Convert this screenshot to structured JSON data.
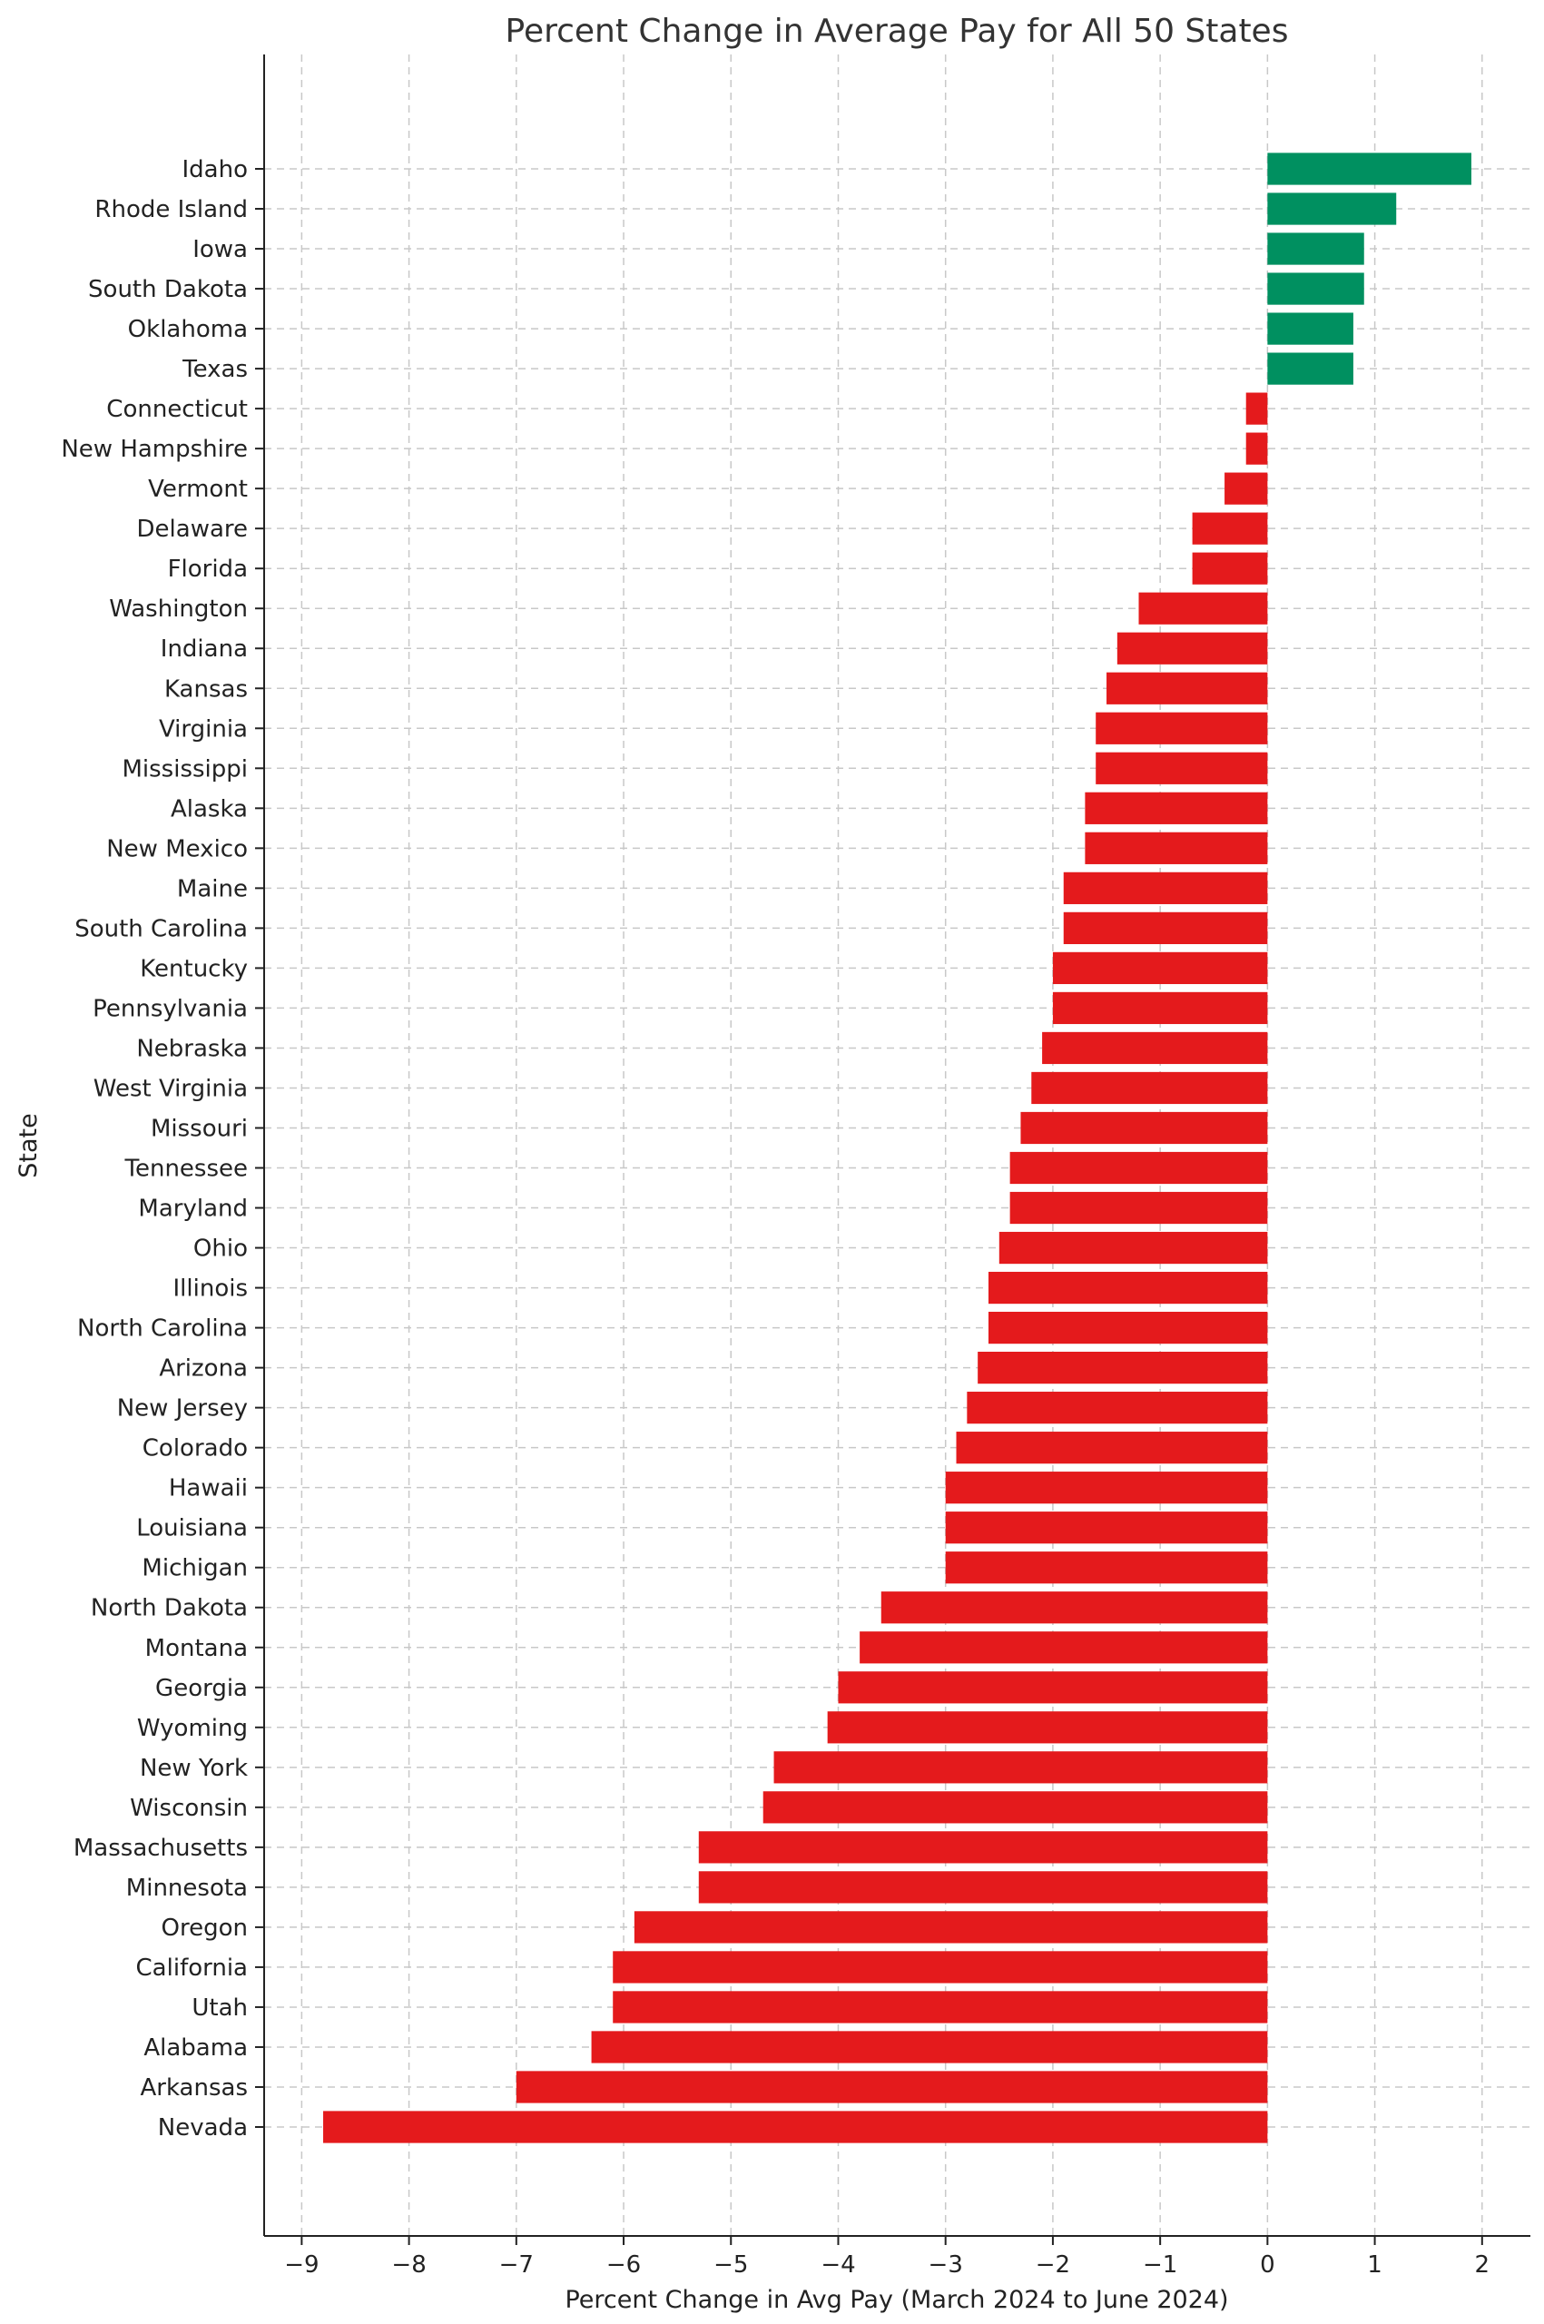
{
  "chart_data": {
    "type": "bar",
    "orientation": "horizontal",
    "title": "Percent Change in Average Pay for All 50 States",
    "xlabel": "Percent Change in Avg Pay (March 2024 to June 2024)",
    "ylabel": "State",
    "xlim": [
      -9.35,
      2.45
    ],
    "xticks": [
      -9,
      -8,
      -7,
      -6,
      -5,
      -4,
      -3,
      -2,
      -1,
      0,
      1,
      2
    ],
    "xtick_labels": [
      "−9",
      "−8",
      "−7",
      "−6",
      "−5",
      "−4",
      "−3",
      "−2",
      "−1",
      "0",
      "1",
      "2"
    ],
    "grid": true,
    "colors": {
      "positive": "#009060",
      "negative": "#e41a1c"
    },
    "categories": [
      "Idaho",
      "Rhode Island",
      "Iowa",
      "South Dakota",
      "Oklahoma",
      "Texas",
      "Connecticut",
      "New Hampshire",
      "Vermont",
      "Delaware",
      "Florida",
      "Washington",
      "Indiana",
      "Kansas",
      "Virginia",
      "Mississippi",
      "Alaska",
      "New Mexico",
      "Maine",
      "South Carolina",
      "Kentucky",
      "Pennsylvania",
      "Nebraska",
      "West Virginia",
      "Missouri",
      "Tennessee",
      "Maryland",
      "Ohio",
      "Illinois",
      "North Carolina",
      "Arizona",
      "New Jersey",
      "Colorado",
      "Hawaii",
      "Louisiana",
      "Michigan",
      "North Dakota",
      "Montana",
      "Georgia",
      "Wyoming",
      "New York",
      "Wisconsin",
      "Massachusetts",
      "Minnesota",
      "Oregon",
      "California",
      "Utah",
      "Alabama",
      "Arkansas",
      "Nevada"
    ],
    "values": [
      1.9,
      1.2,
      0.9,
      0.9,
      0.8,
      0.8,
      -0.2,
      -0.2,
      -0.4,
      -0.7,
      -0.7,
      -1.2,
      -1.4,
      -1.5,
      -1.6,
      -1.6,
      -1.7,
      -1.7,
      -1.9,
      -1.9,
      -2.0,
      -2.0,
      -2.1,
      -2.2,
      -2.3,
      -2.4,
      -2.4,
      -2.5,
      -2.6,
      -2.6,
      -2.7,
      -2.8,
      -2.9,
      -3.0,
      -3.0,
      -3.0,
      -3.6,
      -3.8,
      -4.0,
      -4.1,
      -4.6,
      -4.7,
      -5.3,
      -5.3,
      -5.9,
      -6.1,
      -6.1,
      -6.3,
      -7.0,
      -8.8
    ]
  }
}
